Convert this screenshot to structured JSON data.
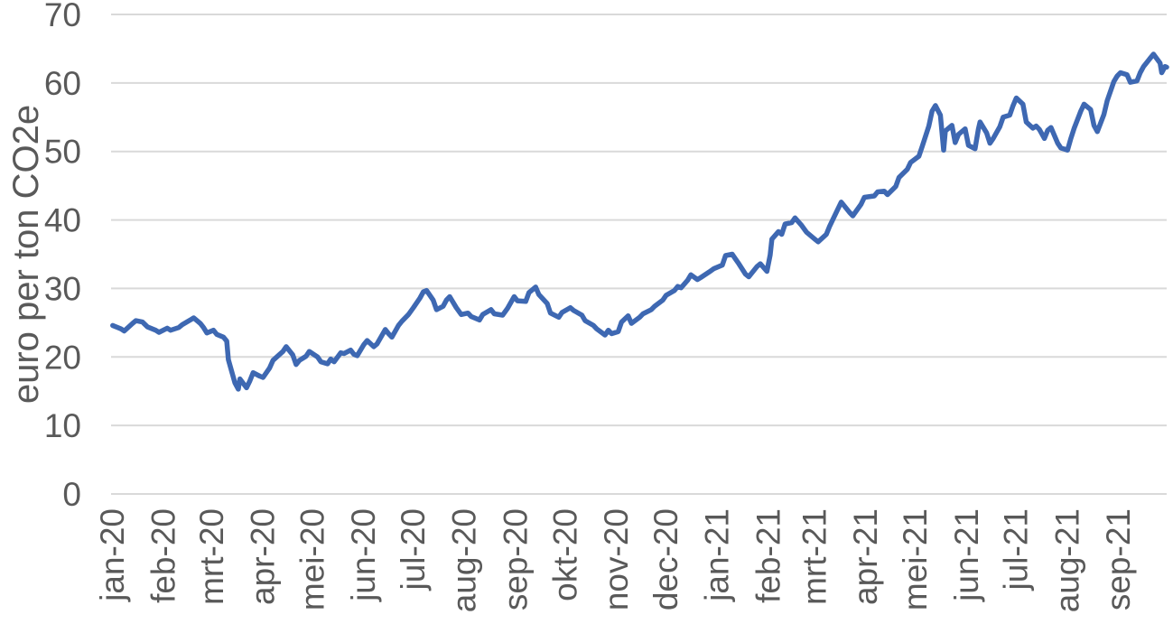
{
  "page": {
    "background_color": "#FFFFFF"
  },
  "chart_data": {
    "type": "line",
    "title": "",
    "xlabel": "",
    "ylabel": "euro per ton CO2e",
    "ylim": [
      0,
      70
    ],
    "yticks": [
      0,
      10,
      20,
      30,
      40,
      50,
      60,
      70
    ],
    "grid": "horizontal",
    "legend_position": "none",
    "x_axis": {
      "start_date": "2020-01-01",
      "end_date": "2021-10-01",
      "tick_labels": [
        "jan-20",
        "feb-20",
        "mrt-20",
        "apr-20",
        "mei-20",
        "jun-20",
        "jul-20",
        "aug-20",
        "sep-20",
        "okt-20",
        "nov-20",
        "dec-20",
        "jan-21",
        "feb-21",
        "mrt-21",
        "apr-21",
        "mei-21",
        "jun-21",
        "jul-21",
        "aug-21",
        "sep-21"
      ],
      "tick_dates": [
        "2020-01-01",
        "2020-02-01",
        "2020-03-01",
        "2020-04-01",
        "2020-05-01",
        "2020-06-01",
        "2020-07-01",
        "2020-08-01",
        "2020-09-01",
        "2020-10-01",
        "2020-11-01",
        "2020-12-01",
        "2021-01-01",
        "2021-02-01",
        "2021-03-01",
        "2021-04-01",
        "2021-05-01",
        "2021-06-01",
        "2021-07-01",
        "2021-08-01",
        "2021-09-01"
      ]
    },
    "series": [
      {
        "name": "euro per ton CO2e",
        "color": "#3E68B2",
        "data": [
          [
            "2020-01-02",
            24.6
          ],
          [
            "2020-01-07",
            24.1
          ],
          [
            "2020-01-09",
            23.8
          ],
          [
            "2020-01-14",
            24.9
          ],
          [
            "2020-01-16",
            25.3
          ],
          [
            "2020-01-20",
            25.1
          ],
          [
            "2020-01-23",
            24.4
          ],
          [
            "2020-01-28",
            23.9
          ],
          [
            "2020-01-30",
            23.6
          ],
          [
            "2020-02-04",
            24.2
          ],
          [
            "2020-02-06",
            23.9
          ],
          [
            "2020-02-11",
            24.3
          ],
          [
            "2020-02-13",
            24.7
          ],
          [
            "2020-02-18",
            25.4
          ],
          [
            "2020-02-20",
            25.7
          ],
          [
            "2020-02-24",
            24.9
          ],
          [
            "2020-02-26",
            24.3
          ],
          [
            "2020-02-28",
            23.5
          ],
          [
            "2020-03-03",
            23.9
          ],
          [
            "2020-03-05",
            23.3
          ],
          [
            "2020-03-09",
            22.9
          ],
          [
            "2020-03-11",
            22.3
          ],
          [
            "2020-03-12",
            19.6
          ],
          [
            "2020-03-16",
            16.2
          ],
          [
            "2020-03-18",
            15.3
          ],
          [
            "2020-03-19",
            16.8
          ],
          [
            "2020-03-23",
            15.5
          ],
          [
            "2020-03-25",
            16.5
          ],
          [
            "2020-03-27",
            17.7
          ],
          [
            "2020-03-31",
            17.2
          ],
          [
            "2020-04-02",
            17.0
          ],
          [
            "2020-04-06",
            18.4
          ],
          [
            "2020-04-08",
            19.5
          ],
          [
            "2020-04-14",
            20.8
          ],
          [
            "2020-04-16",
            21.5
          ],
          [
            "2020-04-20",
            20.3
          ],
          [
            "2020-04-22",
            18.9
          ],
          [
            "2020-04-24",
            19.5
          ],
          [
            "2020-04-28",
            20.1
          ],
          [
            "2020-04-30",
            20.8
          ],
          [
            "2020-05-05",
            20.0
          ],
          [
            "2020-05-07",
            19.3
          ],
          [
            "2020-05-11",
            19.0
          ],
          [
            "2020-05-13",
            19.7
          ],
          [
            "2020-05-15",
            19.3
          ],
          [
            "2020-05-19",
            20.6
          ],
          [
            "2020-05-21",
            20.5
          ],
          [
            "2020-05-25",
            21.0
          ],
          [
            "2020-05-27",
            20.4
          ],
          [
            "2020-05-29",
            20.2
          ],
          [
            "2020-06-02",
            21.8
          ],
          [
            "2020-06-04",
            22.4
          ],
          [
            "2020-06-08",
            21.5
          ],
          [
            "2020-06-10",
            21.9
          ],
          [
            "2020-06-15",
            24.0
          ],
          [
            "2020-06-17",
            23.4
          ],
          [
            "2020-06-19",
            22.9
          ],
          [
            "2020-06-23",
            24.6
          ],
          [
            "2020-06-25",
            25.2
          ],
          [
            "2020-06-29",
            26.2
          ],
          [
            "2020-07-02",
            27.2
          ],
          [
            "2020-07-06",
            28.6
          ],
          [
            "2020-07-08",
            29.5
          ],
          [
            "2020-07-10",
            29.7
          ],
          [
            "2020-07-14",
            28.3
          ],
          [
            "2020-07-16",
            26.9
          ],
          [
            "2020-07-20",
            27.4
          ],
          [
            "2020-07-22",
            28.3
          ],
          [
            "2020-07-24",
            28.8
          ],
          [
            "2020-07-28",
            27.2
          ],
          [
            "2020-07-31",
            26.2
          ],
          [
            "2020-08-04",
            26.4
          ],
          [
            "2020-08-06",
            25.9
          ],
          [
            "2020-08-11",
            25.4
          ],
          [
            "2020-08-13",
            26.2
          ],
          [
            "2020-08-18",
            26.9
          ],
          [
            "2020-08-20",
            26.3
          ],
          [
            "2020-08-25",
            26.1
          ],
          [
            "2020-08-28",
            27.1
          ],
          [
            "2020-09-01",
            28.8
          ],
          [
            "2020-09-03",
            28.2
          ],
          [
            "2020-09-08",
            28.1
          ],
          [
            "2020-09-10",
            29.4
          ],
          [
            "2020-09-14",
            30.2
          ],
          [
            "2020-09-16",
            29.1
          ],
          [
            "2020-09-21",
            27.8
          ],
          [
            "2020-09-23",
            26.4
          ],
          [
            "2020-09-28",
            25.8
          ],
          [
            "2020-09-30",
            26.5
          ],
          [
            "2020-10-05",
            27.2
          ],
          [
            "2020-10-07",
            26.8
          ],
          [
            "2020-10-12",
            26.1
          ],
          [
            "2020-10-14",
            25.3
          ],
          [
            "2020-10-19",
            24.6
          ],
          [
            "2020-10-21",
            24.1
          ],
          [
            "2020-10-26",
            23.2
          ],
          [
            "2020-10-28",
            23.9
          ],
          [
            "2020-10-30",
            23.4
          ],
          [
            "2020-11-03",
            23.7
          ],
          [
            "2020-11-05",
            25.1
          ],
          [
            "2020-11-09",
            26.0
          ],
          [
            "2020-11-11",
            24.9
          ],
          [
            "2020-11-16",
            25.8
          ],
          [
            "2020-11-18",
            26.3
          ],
          [
            "2020-11-23",
            26.9
          ],
          [
            "2020-11-25",
            27.4
          ],
          [
            "2020-11-30",
            28.3
          ],
          [
            "2020-12-02",
            29.0
          ],
          [
            "2020-12-07",
            29.7
          ],
          [
            "2020-12-09",
            30.3
          ],
          [
            "2020-12-11",
            30.1
          ],
          [
            "2020-12-15",
            31.2
          ],
          [
            "2020-12-17",
            32.0
          ],
          [
            "2020-12-21",
            31.3
          ],
          [
            "2020-12-23",
            31.6
          ],
          [
            "2020-12-28",
            32.4
          ],
          [
            "2020-12-31",
            32.9
          ],
          [
            "2021-01-05",
            33.4
          ],
          [
            "2021-01-07",
            34.8
          ],
          [
            "2021-01-11",
            35.0
          ],
          [
            "2021-01-13",
            34.3
          ],
          [
            "2021-01-15",
            33.6
          ],
          [
            "2021-01-19",
            32.1
          ],
          [
            "2021-01-21",
            31.7
          ],
          [
            "2021-01-26",
            33.2
          ],
          [
            "2021-01-28",
            33.6
          ],
          [
            "2021-02-01",
            32.5
          ],
          [
            "2021-02-03",
            34.9
          ],
          [
            "2021-02-04",
            37.2
          ],
          [
            "2021-02-08",
            38.3
          ],
          [
            "2021-02-10",
            37.9
          ],
          [
            "2021-02-12",
            39.4
          ],
          [
            "2021-02-16",
            39.6
          ],
          [
            "2021-02-18",
            40.3
          ],
          [
            "2021-02-22",
            39.2
          ],
          [
            "2021-02-25",
            38.2
          ],
          [
            "2021-03-02",
            37.2
          ],
          [
            "2021-03-04",
            36.8
          ],
          [
            "2021-03-09",
            37.9
          ],
          [
            "2021-03-11",
            39.1
          ],
          [
            "2021-03-16",
            41.6
          ],
          [
            "2021-03-18",
            42.6
          ],
          [
            "2021-03-23",
            41.1
          ],
          [
            "2021-03-25",
            40.6
          ],
          [
            "2021-03-30",
            42.3
          ],
          [
            "2021-04-01",
            43.3
          ],
          [
            "2021-04-07",
            43.5
          ],
          [
            "2021-04-09",
            44.1
          ],
          [
            "2021-04-13",
            44.2
          ],
          [
            "2021-04-15",
            43.7
          ],
          [
            "2021-04-20",
            44.9
          ],
          [
            "2021-04-22",
            46.2
          ],
          [
            "2021-04-27",
            47.4
          ],
          [
            "2021-04-29",
            48.4
          ],
          [
            "2021-05-04",
            49.3
          ],
          [
            "2021-05-06",
            50.7
          ],
          [
            "2021-05-10",
            53.7
          ],
          [
            "2021-05-12",
            55.9
          ],
          [
            "2021-05-14",
            56.7
          ],
          [
            "2021-05-17",
            55.3
          ],
          [
            "2021-05-19",
            50.2
          ],
          [
            "2021-05-20",
            53.0
          ],
          [
            "2021-05-24",
            53.8
          ],
          [
            "2021-05-26",
            51.3
          ],
          [
            "2021-05-28",
            52.5
          ],
          [
            "2021-06-01",
            53.3
          ],
          [
            "2021-06-03",
            50.9
          ],
          [
            "2021-06-07",
            50.4
          ],
          [
            "2021-06-09",
            53.2
          ],
          [
            "2021-06-10",
            54.3
          ],
          [
            "2021-06-14",
            52.7
          ],
          [
            "2021-06-16",
            51.2
          ],
          [
            "2021-06-18",
            51.9
          ],
          [
            "2021-06-22",
            53.6
          ],
          [
            "2021-06-24",
            55.0
          ],
          [
            "2021-06-28",
            55.3
          ],
          [
            "2021-06-30",
            56.7
          ],
          [
            "2021-07-02",
            57.8
          ],
          [
            "2021-07-06",
            56.9
          ],
          [
            "2021-07-08",
            54.3
          ],
          [
            "2021-07-12",
            53.4
          ],
          [
            "2021-07-14",
            53.7
          ],
          [
            "2021-07-16",
            53.2
          ],
          [
            "2021-07-19",
            51.9
          ],
          [
            "2021-07-21",
            53.1
          ],
          [
            "2021-07-23",
            53.5
          ],
          [
            "2021-07-27",
            51.2
          ],
          [
            "2021-07-29",
            50.5
          ],
          [
            "2021-08-02",
            50.2
          ],
          [
            "2021-08-04",
            51.9
          ],
          [
            "2021-08-06",
            53.4
          ],
          [
            "2021-08-10",
            55.9
          ],
          [
            "2021-08-12",
            56.9
          ],
          [
            "2021-08-16",
            56.1
          ],
          [
            "2021-08-18",
            53.8
          ],
          [
            "2021-08-20",
            52.9
          ],
          [
            "2021-08-24",
            55.4
          ],
          [
            "2021-08-26",
            57.4
          ],
          [
            "2021-08-30",
            60.2
          ],
          [
            "2021-09-01",
            61.0
          ],
          [
            "2021-09-03",
            61.5
          ],
          [
            "2021-09-07",
            61.2
          ],
          [
            "2021-09-09",
            60.1
          ],
          [
            "2021-09-13",
            60.3
          ],
          [
            "2021-09-15",
            61.5
          ],
          [
            "2021-09-17",
            62.4
          ],
          [
            "2021-09-21",
            63.6
          ],
          [
            "2021-09-23",
            64.2
          ],
          [
            "2021-09-27",
            62.9
          ],
          [
            "2021-09-28",
            61.5
          ],
          [
            "2021-09-30",
            62.4
          ],
          [
            "2021-10-01",
            62.3
          ]
        ]
      }
    ]
  },
  "colors": {
    "line": "#3E68B2",
    "gridline": "#D9D9D9",
    "axis_text": "#595959",
    "background": "#FFFFFF"
  }
}
